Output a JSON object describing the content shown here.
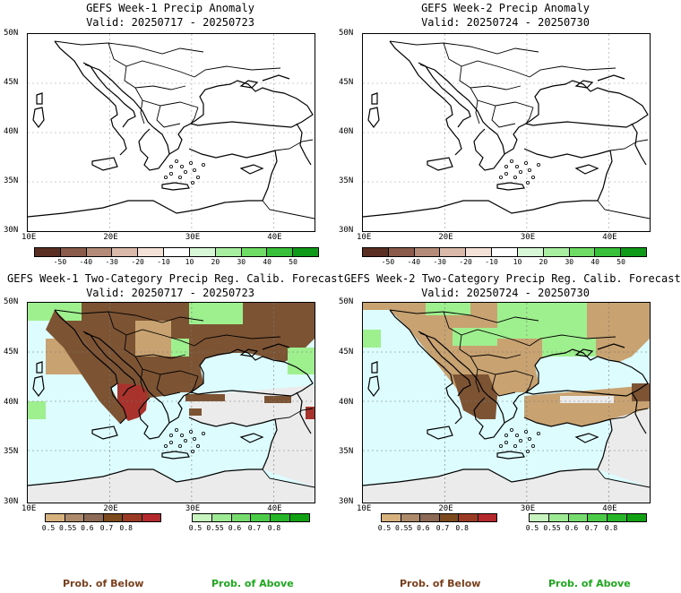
{
  "panels": [
    {
      "title1": "GEFS Week-1 Precip Anomaly",
      "title2": "Valid: 20250717 - 20250723",
      "type": "anomaly"
    },
    {
      "title1": "GEFS Week-2 Precip Anomaly",
      "title2": "Valid: 20250724 - 20250730",
      "type": "anomaly"
    },
    {
      "title1": "GEFS Week-1 Two-Category Precip Reg. Calib. Forecast",
      "title2": "Valid: 20250717 - 20250723",
      "type": "category"
    },
    {
      "title1": "GEFS Week-2 Two-Category Precip Reg. Calib. Forecast",
      "title2": "Valid: 20250724 - 20250730",
      "type": "category"
    }
  ],
  "axes": {
    "lat_labels": [
      "50N",
      "45N",
      "40N",
      "35N",
      "30N"
    ],
    "lon_labels": [
      "10E",
      "20E",
      "30E",
      "40E"
    ]
  },
  "anomaly_colorbar": {
    "labels": [
      "-50",
      "-40",
      "-30",
      "-20",
      "-10",
      "10",
      "20",
      "30",
      "40",
      "50"
    ],
    "colors": [
      "#5a2e22",
      "#8a5a4a",
      "#b48a78",
      "#dab9aa",
      "#f3e1d8",
      "#ffffff",
      "#d8f7d4",
      "#a8eea0",
      "#6fdc66",
      "#38c03a",
      "#0f9a1a"
    ]
  },
  "below_colorbar": {
    "labels": [
      "0.5",
      "0.55",
      "0.6",
      "0.7",
      "0.8"
    ],
    "colors": [
      "#d8b27e",
      "#ad8a6a",
      "#8c6a55",
      "#7d4a1e",
      "#9a3a25",
      "#b5292d"
    ]
  },
  "above_colorbar": {
    "labels": [
      "0.5",
      "0.55",
      "0.6",
      "0.7",
      "0.8"
    ],
    "colors": [
      "#c8f5bf",
      "#9ee993",
      "#75dc6d",
      "#4ccb48",
      "#26b627",
      "#10a012"
    ]
  },
  "legend": {
    "below_label": "Prob. of Below",
    "above_label": "Prob. of Above"
  },
  "colors": {
    "sea": "#dcfcfe",
    "land_neutral": "#ebebeb",
    "below_main": "#c8a270",
    "below_dark": "#7d5433",
    "below_red": "#a8332c",
    "above_main": "#9ef08f"
  }
}
